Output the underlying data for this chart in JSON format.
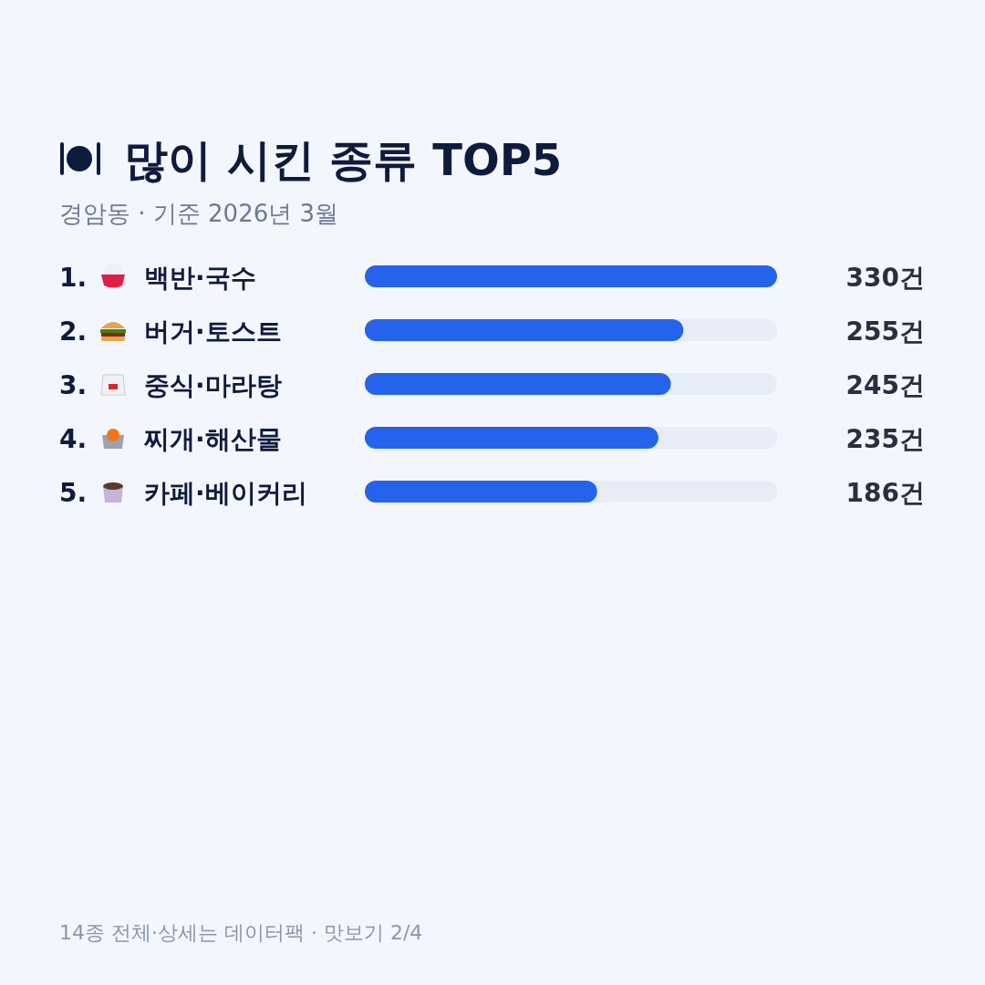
{
  "chart_data": {
    "type": "bar",
    "orientation": "horizontal",
    "title": "많이 시킨 종류 TOP5",
    "subtitle": "경암동 · 기준 2026년 3월",
    "categories": [
      "1. 백반·국수",
      "2. 버거·토스트",
      "3. 중식·마라탕",
      "4. 찌개·해산물",
      "5. 카페·베이커리"
    ],
    "values": [
      330,
      255,
      245,
      235,
      186
    ],
    "color": "#2563eb",
    "value_labels": [
      "330건",
      "255건",
      "245건",
      "235건",
      "186건"
    ],
    "annotations": [
      "14종 전체·상세는 데이터팩 · 맛보기 2/4"
    ]
  }
}
